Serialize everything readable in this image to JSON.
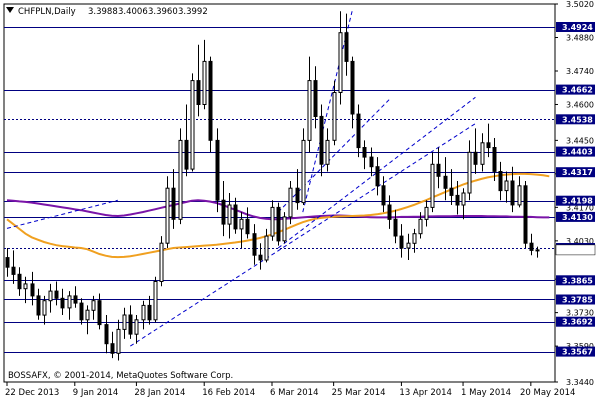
{
  "chart_data": {
    "type": "candlestick",
    "symbol_header": "CHFPLN,Daily",
    "ohlc_header": [
      "3.3988",
      "3.4006",
      "3.3960",
      "3.3992"
    ],
    "copyright": "BOSSAFX, © 2001-2014, MetaQuotes Software Corp.",
    "ylim": [
      3.344,
      3.502
    ],
    "grid": false,
    "y_ticks": [
      "3.5020",
      "3.4880",
      "3.4740",
      "3.4600",
      "3.4450",
      "3.4310",
      "3.4170",
      "3.4030",
      "3.3870",
      "3.3730",
      "3.3590",
      "3.3440"
    ],
    "x_tick_labels": [
      "22 Dec 2013",
      "9 Jan 2014",
      "28 Jan 2014",
      "16 Feb 2014",
      "6 Mar 2014",
      "25 Mar 2014",
      "13 Apr 2014",
      "1 May 2014",
      "20 May 2014"
    ],
    "horizontal_levels": [
      "3.4924",
      "3.4662",
      "3.4538",
      "3.4403",
      "3.4317",
      "3.4198",
      "3.4130",
      "3.4000",
      "3.3865",
      "3.3785",
      "3.3692",
      "3.3567"
    ],
    "dotted_levels": [
      "3.4538",
      "3.4000"
    ],
    "current_price": "3.3992",
    "candles": [
      [
        3.396,
        3.4,
        3.388,
        3.392
      ],
      [
        3.392,
        3.399,
        3.385,
        3.389
      ],
      [
        3.389,
        3.392,
        3.38,
        3.383
      ],
      [
        3.383,
        3.388,
        3.377,
        3.385
      ],
      [
        3.385,
        3.39,
        3.376,
        3.38
      ],
      [
        3.38,
        3.383,
        3.37,
        3.372
      ],
      [
        3.372,
        3.38,
        3.368,
        3.378
      ],
      [
        3.378,
        3.385,
        3.373,
        3.382
      ],
      [
        3.382,
        3.386,
        3.376,
        3.379
      ],
      [
        3.379,
        3.383,
        3.372,
        3.375
      ],
      [
        3.375,
        3.382,
        3.37,
        3.38
      ],
      [
        3.38,
        3.384,
        3.375,
        3.377
      ],
      [
        3.377,
        3.379,
        3.368,
        3.37
      ],
      [
        3.37,
        3.376,
        3.364,
        3.374
      ],
      [
        3.374,
        3.38,
        3.37,
        3.378
      ],
      [
        3.378,
        3.381,
        3.366,
        3.368
      ],
      [
        3.368,
        3.372,
        3.356,
        3.36
      ],
      [
        3.36,
        3.365,
        3.354,
        3.356
      ],
      [
        3.356,
        3.37,
        3.353,
        3.366
      ],
      [
        3.366,
        3.375,
        3.362,
        3.372
      ],
      [
        3.372,
        3.376,
        3.362,
        3.364
      ],
      [
        3.364,
        3.372,
        3.36,
        3.37
      ],
      [
        3.37,
        3.378,
        3.366,
        3.376
      ],
      [
        3.376,
        3.38,
        3.368,
        3.37
      ],
      [
        3.37,
        3.388,
        3.369,
        3.386
      ],
      [
        3.386,
        3.405,
        3.384,
        3.402
      ],
      [
        3.402,
        3.43,
        3.4,
        3.425
      ],
      [
        3.425,
        3.433,
        3.408,
        3.412
      ],
      [
        3.412,
        3.45,
        3.41,
        3.445
      ],
      [
        3.445,
        3.46,
        3.43,
        3.433
      ],
      [
        3.433,
        3.473,
        3.432,
        3.47
      ],
      [
        3.47,
        3.485,
        3.455,
        3.46
      ],
      [
        3.46,
        3.487,
        3.458,
        3.478
      ],
      [
        3.478,
        3.48,
        3.44,
        3.445
      ],
      [
        3.445,
        3.45,
        3.415,
        3.42
      ],
      [
        3.42,
        3.428,
        3.405,
        3.41
      ],
      [
        3.41,
        3.423,
        3.404,
        3.418
      ],
      [
        3.418,
        3.421,
        3.406,
        3.408
      ],
      [
        3.408,
        3.415,
        3.4,
        3.412
      ],
      [
        3.412,
        3.417,
        3.404,
        3.406
      ],
      [
        3.406,
        3.41,
        3.393,
        3.397
      ],
      [
        3.397,
        3.402,
        3.391,
        3.395
      ],
      [
        3.395,
        3.408,
        3.394,
        3.405
      ],
      [
        3.405,
        3.42,
        3.403,
        3.417
      ],
      [
        3.417,
        3.419,
        3.401,
        3.403
      ],
      [
        3.403,
        3.415,
        3.402,
        3.413
      ],
      [
        3.413,
        3.428,
        3.41,
        3.425
      ],
      [
        3.425,
        3.433,
        3.416,
        3.419
      ],
      [
        3.419,
        3.45,
        3.418,
        3.445
      ],
      [
        3.445,
        3.48,
        3.44,
        3.47
      ],
      [
        3.47,
        3.476,
        3.45,
        3.455
      ],
      [
        3.455,
        3.46,
        3.43,
        3.435
      ],
      [
        3.435,
        3.45,
        3.432,
        3.445
      ],
      [
        3.445,
        3.47,
        3.443,
        3.465
      ],
      [
        3.465,
        3.499,
        3.46,
        3.49
      ],
      [
        3.49,
        3.498,
        3.472,
        3.478
      ],
      [
        3.478,
        3.48,
        3.45,
        3.456
      ],
      [
        3.456,
        3.46,
        3.438,
        3.442
      ],
      [
        3.442,
        3.445,
        3.433,
        3.438
      ],
      [
        3.438,
        3.442,
        3.43,
        3.434
      ],
      [
        3.434,
        3.438,
        3.422,
        3.426
      ],
      [
        3.426,
        3.43,
        3.415,
        3.418
      ],
      [
        3.418,
        3.422,
        3.408,
        3.412
      ],
      [
        3.412,
        3.416,
        3.402,
        3.405
      ],
      [
        3.405,
        3.41,
        3.396,
        3.4
      ],
      [
        3.4,
        3.406,
        3.395,
        3.402
      ],
      [
        3.402,
        3.408,
        3.398,
        3.406
      ],
      [
        3.406,
        3.415,
        3.404,
        3.412
      ],
      [
        3.412,
        3.42,
        3.409,
        3.417
      ],
      [
        3.417,
        3.44,
        3.415,
        3.435
      ],
      [
        3.435,
        3.442,
        3.425,
        3.43
      ],
      [
        3.43,
        3.438,
        3.42,
        3.425
      ],
      [
        3.425,
        3.433,
        3.418,
        3.422
      ],
      [
        3.422,
        3.428,
        3.414,
        3.418
      ],
      [
        3.418,
        3.425,
        3.412,
        3.423
      ],
      [
        3.423,
        3.445,
        3.42,
        3.44
      ],
      [
        3.44,
        3.45,
        3.431,
        3.435
      ],
      [
        3.435,
        3.448,
        3.432,
        3.444
      ],
      [
        3.444,
        3.452,
        3.438,
        3.442
      ],
      [
        3.442,
        3.446,
        3.428,
        3.432
      ],
      [
        3.432,
        3.436,
        3.42,
        3.424
      ],
      [
        3.424,
        3.432,
        3.419,
        3.428
      ],
      [
        3.428,
        3.434,
        3.415,
        3.418
      ],
      [
        3.418,
        3.43,
        3.417,
        3.426
      ],
      [
        3.426,
        3.428,
        3.4,
        3.402
      ],
      [
        3.402,
        3.406,
        3.397,
        3.399
      ],
      [
        3.3988,
        3.4006,
        3.396,
        3.3992
      ]
    ],
    "series": [
      {
        "kind": "moving-average",
        "color": "#7a14a8",
        "values": [
          3.42,
          3.4198,
          3.4195,
          3.4193,
          3.419,
          3.4186,
          3.4182,
          3.4178,
          3.4174,
          3.417,
          3.4166,
          3.4162,
          3.4158,
          3.4153,
          3.4148,
          3.4143,
          3.4138,
          3.4135,
          3.4134,
          3.4136,
          3.414,
          3.4145,
          3.415,
          3.4156,
          3.4162,
          3.4168,
          3.4174,
          3.418,
          3.4186,
          3.4192,
          3.4198,
          3.42,
          3.4198,
          3.4194,
          3.4188,
          3.418,
          3.417,
          3.416,
          3.415,
          3.414,
          3.4132,
          3.4126,
          3.4122,
          3.412,
          3.412,
          3.4122,
          3.4124,
          3.4126,
          3.4128,
          3.413,
          3.4132,
          3.4134,
          3.4135,
          3.4136,
          3.4136,
          3.4135,
          3.4134,
          3.4132,
          3.413,
          3.4129,
          3.4128,
          3.4128,
          3.4128,
          3.4129,
          3.413,
          3.413,
          3.4131,
          3.4131,
          3.4132,
          3.4132,
          3.4133,
          3.4133,
          3.4133,
          3.4134,
          3.4134,
          3.4134,
          3.4134,
          3.4134,
          3.4133,
          3.4133,
          3.4132,
          3.4132,
          3.4131,
          3.4131,
          3.413,
          3.413,
          3.4129,
          3.4128,
          3.4128
        ]
      },
      {
        "kind": "moving-average",
        "color": "#f0a020",
        "values": [
          3.412,
          3.41,
          3.408,
          3.406,
          3.4045,
          3.4035,
          3.4025,
          3.4018,
          3.4012,
          3.4008,
          3.4005,
          3.4002,
          3.4,
          3.3995,
          3.3985,
          3.3975,
          3.3968,
          3.3963,
          3.3962,
          3.3963,
          3.3966,
          3.397,
          3.3975,
          3.398,
          3.3985,
          3.399,
          3.3995,
          3.4,
          3.4002,
          3.4004,
          3.4006,
          3.4008,
          3.401,
          3.4012,
          3.4014,
          3.4017,
          3.402,
          3.4023,
          3.4027,
          3.4031,
          3.4036,
          3.4042,
          3.4049,
          3.4057,
          3.4066,
          3.4076,
          3.4087,
          3.4098,
          3.4108,
          3.4116,
          3.4122,
          3.4126,
          3.4129,
          3.4131,
          3.4132,
          3.4133,
          3.4134,
          3.4135,
          3.4136,
          3.4138,
          3.4141,
          3.4145,
          3.415,
          3.4156,
          3.4163,
          3.4171,
          3.418,
          3.419,
          3.42,
          3.4211,
          3.4222,
          3.4233,
          3.4244,
          3.4255,
          3.4265,
          3.4274,
          3.4282,
          3.4289,
          3.4295,
          3.43,
          3.4304,
          3.4307,
          3.4309,
          3.431,
          3.431,
          3.4309,
          3.4307,
          3.4304,
          3.43
        ]
      }
    ],
    "trendlines": [
      {
        "points": [
          [
            0,
            3.4082
          ],
          [
            18,
            3.42
          ]
        ],
        "style": "dashed",
        "color": "#0000cc"
      },
      {
        "points": [
          [
            20,
            3.359
          ],
          [
            76,
            3.452
          ]
        ],
        "style": "dashed",
        "color": "#0000cc"
      },
      {
        "points": [
          [
            44,
            3.4
          ],
          [
            76,
            3.463
          ]
        ],
        "style": "dashed",
        "color": "#0000cc"
      },
      {
        "points": [
          [
            44,
            3.415
          ],
          [
            62,
            3.462
          ]
        ],
        "style": "dashed",
        "color": "#0000cc"
      },
      {
        "points": [
          [
            48,
            3.415
          ],
          [
            56,
            3.499
          ]
        ],
        "style": "dashed",
        "color": "#0000cc"
      }
    ]
  }
}
